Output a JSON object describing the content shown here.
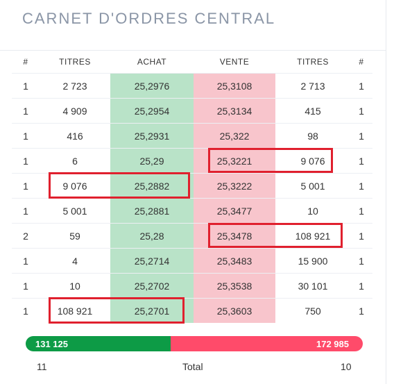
{
  "title": "CARNET D'ORDRES CENTRAL",
  "columns": [
    "#",
    "TITRES",
    "ACHAT",
    "VENTE",
    "TITRES",
    "#"
  ],
  "rows": [
    {
      "bid_count": "1",
      "bid_qty": "2 723",
      "bid_price": "25,2976",
      "ask_price": "25,3108",
      "ask_qty": "2 713",
      "ask_count": "1"
    },
    {
      "bid_count": "1",
      "bid_qty": "4 909",
      "bid_price": "25,2954",
      "ask_price": "25,3134",
      "ask_qty": "415",
      "ask_count": "1"
    },
    {
      "bid_count": "1",
      "bid_qty": "416",
      "bid_price": "25,2931",
      "ask_price": "25,322",
      "ask_qty": "98",
      "ask_count": "1"
    },
    {
      "bid_count": "1",
      "bid_qty": "6",
      "bid_price": "25,29",
      "ask_price": "25,3221",
      "ask_qty": "9 076",
      "ask_count": "1"
    },
    {
      "bid_count": "1",
      "bid_qty": "9 076",
      "bid_price": "25,2882",
      "ask_price": "25,3222",
      "ask_qty": "5 001",
      "ask_count": "1"
    },
    {
      "bid_count": "1",
      "bid_qty": "5 001",
      "bid_price": "25,2881",
      "ask_price": "25,3477",
      "ask_qty": "10",
      "ask_count": "1"
    },
    {
      "bid_count": "2",
      "bid_qty": "59",
      "bid_price": "25,28",
      "ask_price": "25,3478",
      "ask_qty": "108 921",
      "ask_count": "1"
    },
    {
      "bid_count": "1",
      "bid_qty": "4",
      "bid_price": "25,2714",
      "ask_price": "25,3483",
      "ask_qty": "15 900",
      "ask_count": "1"
    },
    {
      "bid_count": "1",
      "bid_qty": "10",
      "bid_price": "25,2702",
      "ask_price": "25,3538",
      "ask_qty": "30 101",
      "ask_count": "1"
    },
    {
      "bid_count": "1",
      "bid_qty": "108 921",
      "bid_price": "25,2701",
      "ask_price": "25,3603",
      "ask_qty": "750",
      "ask_count": "1"
    }
  ],
  "totals": {
    "bid_total": "131 125",
    "ask_total": "172 985",
    "bid_share": 0.431,
    "bid_orders": "11",
    "label": "Total",
    "ask_orders": "10"
  },
  "colors": {
    "buy_cell": "#b9e3c8",
    "sell_cell": "#f8c5cc",
    "bid_bar": "#0d9b46",
    "ask_bar": "#ff4b6a",
    "highlight": "#e0202e"
  }
}
